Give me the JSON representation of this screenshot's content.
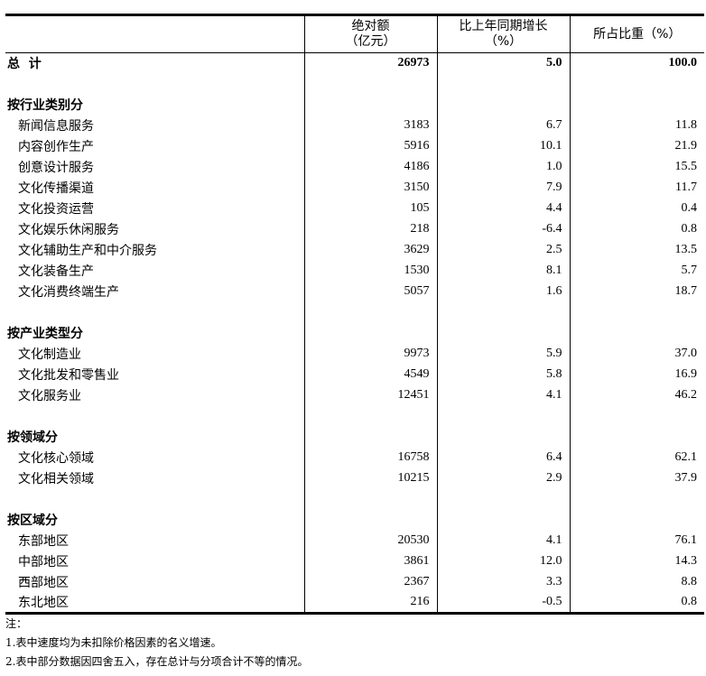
{
  "header": {
    "col0": "",
    "col1_line1": "绝对额",
    "col1_line2": "（亿元）",
    "col2_line1": "比上年同期增长",
    "col2_line2": "（%）",
    "col3": "所占比重（%）"
  },
  "total": {
    "label": "总  计",
    "amount": "26973",
    "growth": "5.0",
    "share": "100.0"
  },
  "sections": [
    {
      "title": "按行业类别分",
      "rows": [
        {
          "label": "新闻信息服务",
          "amount": "3183",
          "growth": "6.7",
          "share": "11.8"
        },
        {
          "label": "内容创作生产",
          "amount": "5916",
          "growth": "10.1",
          "share": "21.9"
        },
        {
          "label": "创意设计服务",
          "amount": "4186",
          "growth": "1.0",
          "share": "15.5"
        },
        {
          "label": "文化传播渠道",
          "amount": "3150",
          "growth": "7.9",
          "share": "11.7"
        },
        {
          "label": "文化投资运营",
          "amount": "105",
          "growth": "4.4",
          "share": "0.4"
        },
        {
          "label": "文化娱乐休闲服务",
          "amount": "218",
          "growth": "-6.4",
          "share": "0.8"
        },
        {
          "label": "文化辅助生产和中介服务",
          "amount": "3629",
          "growth": "2.5",
          "share": "13.5"
        },
        {
          "label": "文化装备生产",
          "amount": "1530",
          "growth": "8.1",
          "share": "5.7"
        },
        {
          "label": "文化消费终端生产",
          "amount": "5057",
          "growth": "1.6",
          "share": "18.7"
        }
      ]
    },
    {
      "title": "按产业类型分",
      "rows": [
        {
          "label": "文化制造业",
          "amount": "9973",
          "growth": "5.9",
          "share": "37.0"
        },
        {
          "label": "文化批发和零售业",
          "amount": "4549",
          "growth": "5.8",
          "share": "16.9"
        },
        {
          "label": "文化服务业",
          "amount": "12451",
          "growth": "4.1",
          "share": "46.2"
        }
      ]
    },
    {
      "title": "按领域分",
      "rows": [
        {
          "label": "文化核心领域",
          "amount": "16758",
          "growth": "6.4",
          "share": "62.1"
        },
        {
          "label": "文化相关领域",
          "amount": "10215",
          "growth": "2.9",
          "share": "37.9"
        }
      ]
    },
    {
      "title": "按区域分",
      "rows": [
        {
          "label": "东部地区",
          "amount": "20530",
          "growth": "4.1",
          "share": "76.1"
        },
        {
          "label": "中部地区",
          "amount": "3861",
          "growth": "12.0",
          "share": "14.3"
        },
        {
          "label": "西部地区",
          "amount": "2367",
          "growth": "3.3",
          "share": "8.8"
        },
        {
          "label": "东北地区",
          "amount": "216",
          "growth": "-0.5",
          "share": "0.8"
        }
      ]
    }
  ],
  "notes": {
    "title": "注：",
    "items": [
      "1.表中速度均为未扣除价格因素的名义增速。",
      "2.表中部分数据因四舍五入，存在总计与分项合计不等的情况。"
    ]
  }
}
